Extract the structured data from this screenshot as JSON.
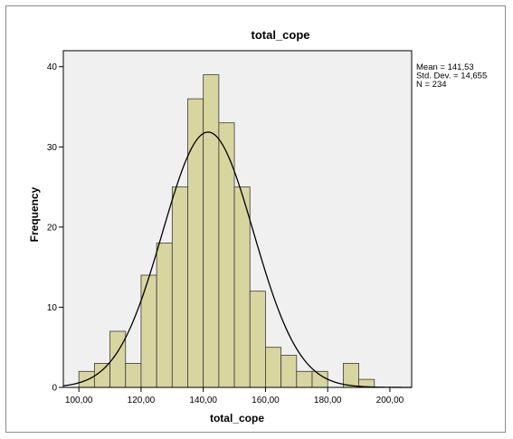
{
  "chart_data": {
    "type": "bar",
    "title": "total_cope",
    "xlabel": "total_cope",
    "ylabel": "Frequency",
    "xlim": [
      95,
      207
    ],
    "ylim": [
      0,
      42
    ],
    "bin_width": 5,
    "x_ticks": [
      100,
      120,
      140,
      160,
      180,
      200
    ],
    "x_tick_labels": [
      "100,00",
      "120,00",
      "140,00",
      "160,00",
      "180,00",
      "200,00"
    ],
    "y_ticks": [
      0,
      10,
      20,
      30,
      40
    ],
    "y_tick_labels": [
      "0",
      "10",
      "20",
      "30",
      "40"
    ],
    "bins": [
      {
        "x0": 100,
        "x1": 105,
        "value": 2
      },
      {
        "x0": 105,
        "x1": 110,
        "value": 3
      },
      {
        "x0": 110,
        "x1": 115,
        "value": 7
      },
      {
        "x0": 115,
        "x1": 120,
        "value": 3
      },
      {
        "x0": 120,
        "x1": 125,
        "value": 14
      },
      {
        "x0": 125,
        "x1": 130,
        "value": 18
      },
      {
        "x0": 130,
        "x1": 135,
        "value": 25
      },
      {
        "x0": 135,
        "x1": 140,
        "value": 36
      },
      {
        "x0": 140,
        "x1": 145,
        "value": 39
      },
      {
        "x0": 145,
        "x1": 150,
        "value": 33
      },
      {
        "x0": 150,
        "x1": 155,
        "value": 25
      },
      {
        "x0": 155,
        "x1": 160,
        "value": 12
      },
      {
        "x0": 160,
        "x1": 165,
        "value": 5
      },
      {
        "x0": 165,
        "x1": 170,
        "value": 4
      },
      {
        "x0": 170,
        "x1": 175,
        "value": 2
      },
      {
        "x0": 175,
        "x1": 180,
        "value": 2
      },
      {
        "x0": 185,
        "x1": 190,
        "value": 3
      },
      {
        "x0": 190,
        "x1": 195,
        "value": 1
      }
    ],
    "normal_curve": {
      "mean": 141.53,
      "sd": 14.655,
      "n": 234
    },
    "stats_lines": [
      "Mean = 141,53",
      "Std. Dev. = 14,655",
      "N = 234"
    ],
    "legend_position": "top-right",
    "grid": false
  },
  "colors": {
    "bar_fill": "#d9d5a0",
    "bar_stroke": "#3a3a3a",
    "plot_bg": "#f0f0f0",
    "curve": "#000000"
  }
}
